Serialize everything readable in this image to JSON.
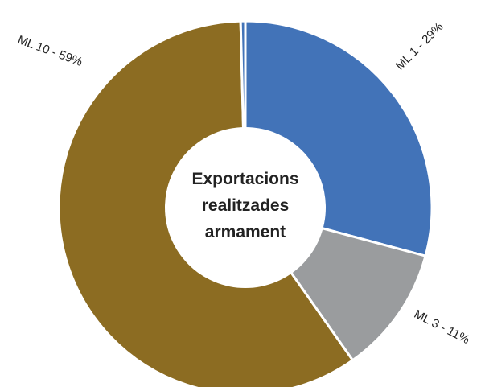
{
  "chart_data": {
    "type": "pie",
    "donut": true,
    "center_title_lines": [
      "Exportacions",
      "realitzades",
      "armament"
    ],
    "slices": [
      {
        "name": "ML 1",
        "value": 29,
        "label": "ML 1 - 29%",
        "color": "#4273b8"
      },
      {
        "name": "ML 3",
        "value": 11,
        "label": "ML 3 - 11%",
        "color": "#9a9c9e"
      },
      {
        "name": "ML 10",
        "value": 59,
        "label": "ML 10 - 59%",
        "color": "#8c6c22"
      },
      {
        "name": "",
        "value": 0.4,
        "label": "",
        "color": "#4273b8"
      }
    ]
  }
}
